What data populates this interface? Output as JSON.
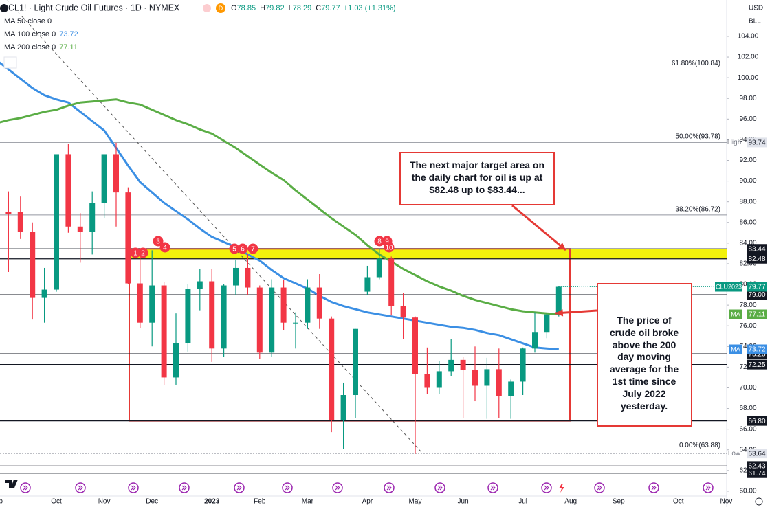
{
  "chart_data": {
    "type": "candlestick",
    "title": "CL1! · Light Crude Oil Futures · 1D · NYMEX",
    "badge": "D",
    "ohlc": [
      {
        "key": "O",
        "value": 78.85
      },
      {
        "key": "H",
        "value": 79.82
      },
      {
        "key": "L",
        "value": 78.29
      },
      {
        "key": "C",
        "value": 79.77
      }
    ],
    "change": "+1.03 (+1.31%)",
    "currency": "USD",
    "unit": "BLL",
    "up_color": "#089981",
    "down_color": "#f23645",
    "categories": [
      "Sep",
      null,
      null,
      null,
      null,
      "Oct",
      null,
      null,
      null,
      "Nov",
      null,
      null,
      null,
      "Dec",
      null,
      null,
      null,
      null,
      "2023",
      null,
      null,
      null,
      "Feb",
      null,
      null,
      null,
      "Mar",
      null,
      null,
      null,
      null,
      "Apr",
      null,
      null,
      null,
      "May",
      null,
      null,
      null,
      "Jun",
      null,
      null,
      null,
      null,
      "Jul",
      null,
      null,
      null,
      "Aug",
      null,
      null,
      null,
      "Sep",
      null,
      null,
      null,
      null,
      "Oct",
      null,
      null,
      null,
      "Nov",
      null
    ],
    "open": [
      89.5,
      87,
      87,
      85.1,
      78.7,
      79.5,
      92.6,
      85.6,
      85.1,
      87.9,
      92.6,
      88.9,
      80.1,
      76.3,
      79.9,
      71.0,
      74.3,
      79.6,
      80.3,
      73.8,
      79.9,
      81.6,
      79.7,
      73.4,
      79.7,
      76.3,
      76.3,
      79.7,
      76.7,
      66.9,
      69.3,
      79.3,
      80.7,
      82.5,
      77.9,
      76.8,
      71.3,
      70.0,
      71.6,
      72.7,
      71.7,
      70.2,
      71.8,
      69.2,
      70.6,
      73.8,
      75.4,
      77.1,
      null,
      null,
      null,
      null,
      null,
      null,
      null,
      null,
      null,
      null,
      null,
      null,
      null,
      null,
      null
    ],
    "high": [
      90,
      89,
      88.5,
      86.0,
      81.6,
      92.6,
      93.6,
      86.9,
      89.0,
      92.6,
      93.7,
      89.4,
      82.7,
      83.3,
      80.2,
      77.2,
      80.0,
      81.5,
      81.5,
      80.0,
      82.4,
      83.0,
      79.9,
      80.5,
      80.4,
      77.3,
      80.5,
      81.0,
      76.9,
      70.5,
      75.7,
      81.8,
      83.5,
      82.7,
      79.2,
      76.9,
      73.9,
      72.6,
      74.7,
      73.0,
      74.0,
      72.9,
      73.8,
      70.8,
      73.9,
      77.3,
      77.2,
      79.82,
      null,
      null,
      null,
      null,
      null,
      null,
      null,
      null,
      null,
      null,
      null,
      null,
      null,
      null,
      null
    ],
    "low": [
      83.6,
      81.2,
      84.4,
      76.6,
      76.3,
      79.3,
      85,
      82.1,
      82.9,
      86.4,
      85.6,
      80.0,
      75.8,
      74,
      70.3,
      70.3,
      73.5,
      77.5,
      72.5,
      73.0,
      79.0,
      79.0,
      72.8,
      73.0,
      75.6,
      73.8,
      75.7,
      75.7,
      65.7,
      64.1,
      67.1,
      79.0,
      80.5,
      77.0,
      74.7,
      63.6,
      69.4,
      69.4,
      71.1,
      67.1,
      68.7,
      67.0,
      67.1,
      67.0,
      69.3,
      73.4,
      74.8,
      76.9,
      null,
      null,
      null,
      null,
      null,
      null,
      null,
      null,
      null,
      null,
      null,
      null,
      null,
      null,
      null
    ],
    "close": [
      86.9,
      86.8,
      85.1,
      78.7,
      79.5,
      92.6,
      85.6,
      85.1,
      87.9,
      92.6,
      88.9,
      80.1,
      76.3,
      79.9,
      71.0,
      74.3,
      79.6,
      80.3,
      73.8,
      79.9,
      81.6,
      79.7,
      73.4,
      79.7,
      76.3,
      76.3,
      79.7,
      76.7,
      66.9,
      69.3,
      75.7,
      80.7,
      82.5,
      77.9,
      76.8,
      71.3,
      70.0,
      71.6,
      72.7,
      71.7,
      70.2,
      71.8,
      69.2,
      70.6,
      73.8,
      75.4,
      77.1,
      79.77,
      null,
      null,
      null,
      null,
      null,
      null,
      null,
      null,
      null,
      null,
      null,
      null,
      null,
      null,
      null
    ],
    "last_tag": "CLU2023",
    "series": [
      {
        "name": "MA 50 close 0"
      },
      {
        "name": "MA 100 close 0",
        "tag": "MA",
        "color": "#3b8fe4",
        "values": [
          101.7,
          100.8,
          99.9,
          99.0,
          98.3,
          97.9,
          97.6,
          96.7,
          95.8,
          94.9,
          93.2,
          91.5,
          89.9,
          88.9,
          87.9,
          87.1,
          86.3,
          85.4,
          84.6,
          84.1,
          83.6,
          82.9,
          82.3,
          81.4,
          80.6,
          80.1,
          79.6,
          78.9,
          78.3,
          77.9,
          77.6,
          77.3,
          77.1,
          76.9,
          76.7,
          76.5,
          76.3,
          76.1,
          75.9,
          75.8,
          75.6,
          75.3,
          75.1,
          74.7,
          74.3,
          73.9,
          73.8,
          73.72,
          null,
          null,
          null,
          null,
          null,
          null,
          null,
          null,
          null,
          null,
          null,
          null,
          null,
          null,
          null
        ]
      },
      {
        "name": "MA 200 close 0",
        "tag": "MA",
        "color": "#5aad45",
        "values": [
          95.6,
          95.9,
          96.1,
          96.4,
          96.7,
          96.9,
          97.3,
          97.6,
          97.7,
          97.8,
          97.9,
          97.6,
          97.4,
          96.9,
          96.4,
          95.9,
          95.5,
          95.0,
          94.6,
          93.9,
          93.2,
          92.4,
          91.6,
          90.8,
          90.1,
          89.1,
          88.2,
          87.3,
          86.4,
          85.6,
          84.8,
          83.8,
          82.9,
          82.2,
          81.5,
          80.9,
          80.3,
          79.8,
          79.4,
          78.9,
          78.5,
          78.2,
          77.9,
          77.6,
          77.4,
          77.3,
          77.2,
          77.11,
          null,
          null,
          null,
          null,
          null,
          null,
          null,
          null,
          null,
          null,
          null,
          null,
          null,
          null,
          null
        ]
      }
    ],
    "ylim": [
      59.53,
      107.52
    ],
    "yticks": [
      {
        "value": 104,
        "label": "104.00"
      },
      {
        "value": 102,
        "label": "102.00"
      },
      {
        "value": 100,
        "label": "100.00"
      },
      {
        "value": 98,
        "label": "98.00"
      },
      {
        "value": 96,
        "label": "96.00"
      },
      {
        "value": 94,
        "label": "94.00"
      },
      {
        "value": 92,
        "label": "92.00"
      },
      {
        "value": 90,
        "label": "90.00"
      },
      {
        "value": 88,
        "label": "88.00"
      },
      {
        "value": 86,
        "label": "86.00"
      },
      {
        "value": 84,
        "label": "84.00"
      },
      {
        "value": 82,
        "label": "82.00"
      },
      {
        "value": 80,
        "label": "80.00"
      },
      {
        "value": 78,
        "label": "78.00"
      },
      {
        "value": 76,
        "label": "76.00"
      },
      {
        "value": 74,
        "label": "74.00"
      },
      {
        "value": 72,
        "label": "72.00"
      },
      {
        "value": 70,
        "label": "70.00"
      },
      {
        "value": 68,
        "label": "68.00"
      },
      {
        "value": 66,
        "label": "66.00"
      },
      {
        "value": 64,
        "label": "64.00"
      },
      {
        "value": 62,
        "label": "62.00"
      },
      {
        "value": 60,
        "label": "60.00"
      }
    ],
    "grid": false,
    "levels": [
      83.44,
      82.48,
      {
        "value": 79,
        "label": "79.00"
      },
      73.28,
      72.25,
      {
        "value": 66.8,
        "label": "66.80"
      },
      62.43,
      61.74
    ],
    "fib_levels": [
      {
        "value": 100.84,
        "label": "61.80%(100.84)"
      },
      {
        "value": 93.78,
        "label": "50.00%(93.78)"
      },
      {
        "value": 86.72,
        "label": "38.20%(86.72)"
      },
      {
        "value": 63.88,
        "label": "0.00%(63.88)"
      }
    ],
    "extremes": [
      {
        "label": "High",
        "value": 93.74
      },
      {
        "label": "Low",
        "value": 63.64
      }
    ],
    "zone_color": "#f2f20c",
    "box_color": "#e53935",
    "markers": [
      "1",
      "2",
      "3",
      "4",
      "5",
      "6",
      "7",
      "8",
      "9",
      "10"
    ],
    "annotations": [
      {
        "text": "The next major target area on the daily chart for oil is up at $82.48 up to $83.44..."
      },
      {
        "text": "The price of crude oil broke above the 200 day moving average for the 1st time since July 2022 yesterday."
      }
    ]
  }
}
